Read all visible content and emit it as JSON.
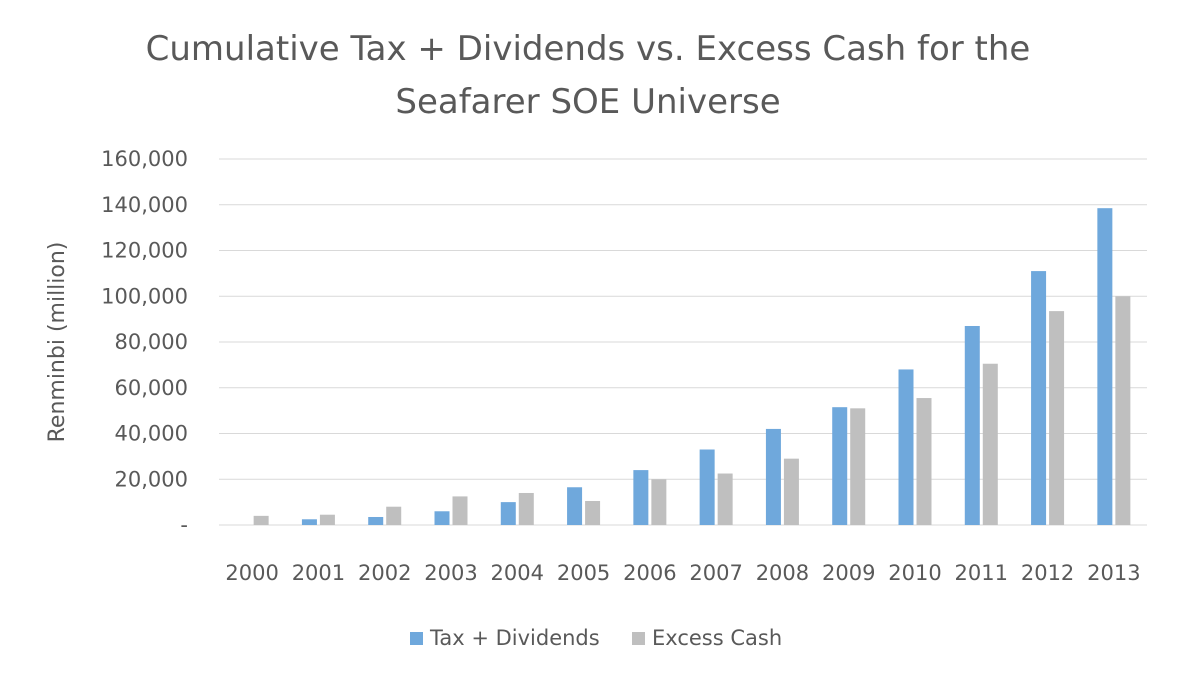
{
  "chart_data": {
    "type": "bar",
    "title_lines": [
      "Cumulative Tax + Dividends vs. Excess Cash for the",
      "Seafarer SOE Universe"
    ],
    "xlabel": "",
    "ylabel": "Renminbi (million)",
    "categories": [
      "2000",
      "2001",
      "2002",
      "2003",
      "2004",
      "2005",
      "2006",
      "2007",
      "2008",
      "2009",
      "2010",
      "2011",
      "2012",
      "2013"
    ],
    "series": [
      {
        "name": "Tax + Dividends",
        "color": "#6fa8dc",
        "values": [
          0,
          2500,
          3500,
          6000,
          10000,
          16500,
          24000,
          33000,
          42000,
          51500,
          68000,
          87000,
          111000,
          138500
        ]
      },
      {
        "name": "Excess Cash",
        "color": "#bfbfbf",
        "values": [
          4000,
          4500,
          8000,
          12500,
          14000,
          10500,
          20000,
          22500,
          29000,
          51000,
          55500,
          70500,
          93500,
          100000
        ]
      }
    ],
    "ylim": [
      0,
      160000
    ],
    "yticks": [
      {
        "value": 0,
        "label": "-"
      },
      {
        "value": 20000,
        "label": "20,000"
      },
      {
        "value": 40000,
        "label": "40,000"
      },
      {
        "value": 60000,
        "label": "60,000"
      },
      {
        "value": 80000,
        "label": "80,000"
      },
      {
        "value": 100000,
        "label": "100,000"
      },
      {
        "value": 120000,
        "label": "120,000"
      },
      {
        "value": 140000,
        "label": "140,000"
      },
      {
        "value": 160000,
        "label": "160,000"
      }
    ],
    "grid": true,
    "legend_position": "bottom"
  }
}
